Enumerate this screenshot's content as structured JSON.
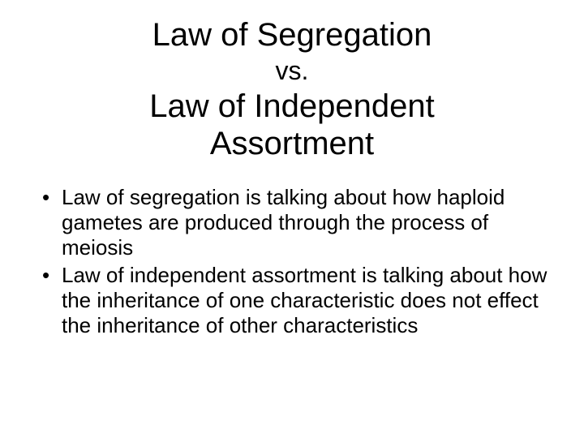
{
  "title": {
    "line1": "Law of Segregation",
    "vs": "vs.",
    "line2": "Law of Independent",
    "line3": "Assortment"
  },
  "bullets": [
    "Law of segregation is talking about how haploid gametes are produced through the process of meiosis",
    "Law of independent assortment is talking about how the inheritance of one characteristic does not effect the inheritance of other characteristics"
  ],
  "style": {
    "background_color": "#ffffff",
    "text_color": "#000000",
    "title_fontsize": 40,
    "vs_fontsize": 32,
    "body_fontsize": 26,
    "font_family": "Arial"
  }
}
